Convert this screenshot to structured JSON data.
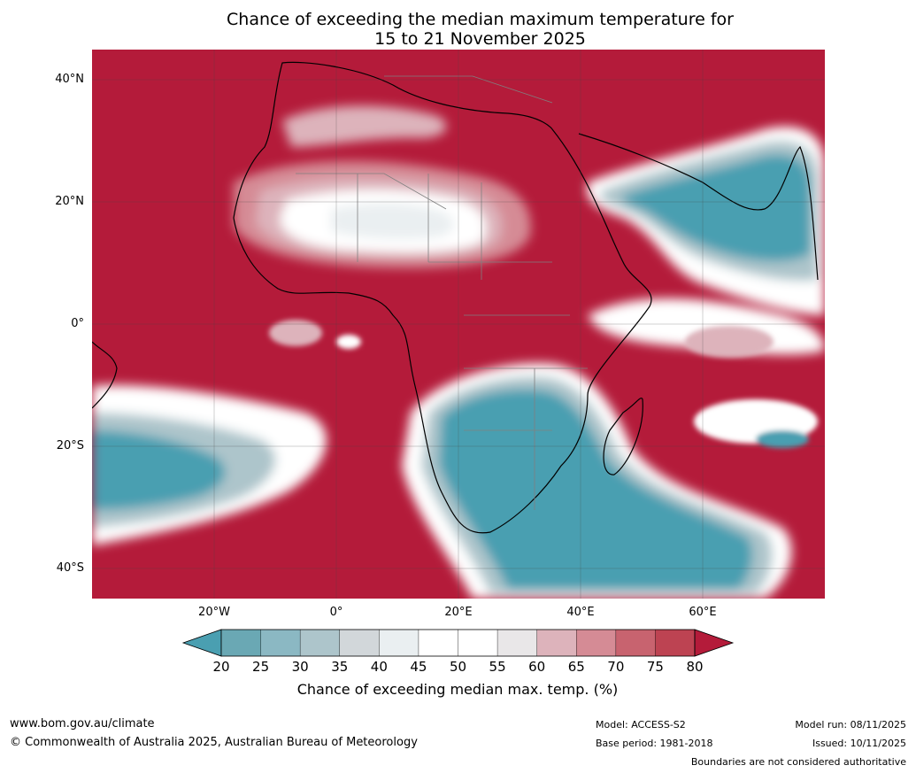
{
  "title": {
    "line1": "Chance of exceeding the median maximum temperature for",
    "line2": "15 to 21 November 2025"
  },
  "map": {
    "lat_labels": [
      "40°N",
      "20°N",
      "0°",
      "20°S",
      "40°S"
    ],
    "lon_labels": [
      "20°W",
      "0°",
      "20°E",
      "40°E",
      "60°E"
    ],
    "colors": {
      "above_80": "#b41b3a",
      "cool_20": "#4a9fb1",
      "neutral": "#ffffff",
      "coast": "#000000",
      "border": "#808080"
    }
  },
  "colorbar": {
    "ticks": [
      "20",
      "25",
      "30",
      "35",
      "40",
      "45",
      "50",
      "55",
      "60",
      "65",
      "70",
      "75",
      "80"
    ],
    "colors": [
      "#4a9fb1",
      "#6aa8b4",
      "#8bb8c3",
      "#adc5cb",
      "#d2d7da",
      "#eaeff1",
      "#ffffff",
      "#ffffff",
      "#e9e7e8",
      "#ddb3bb",
      "#d58b95",
      "#c8636f",
      "#bd4352",
      "#b41b3a"
    ],
    "label": "Chance of exceeding median max. temp. (%)"
  },
  "footer": {
    "website": "www.bom.gov.au/climate",
    "copyright": "© Commonwealth of Australia 2025, Australian Bureau of Meteorology",
    "model": "Model: ACCESS-S2",
    "base_period": "Base period: 1981-2018",
    "model_run": "Model run: 08/11/2025",
    "issued": "Issued: 10/11/2025",
    "disclaimer": "Boundaries are not considered authoritative"
  }
}
